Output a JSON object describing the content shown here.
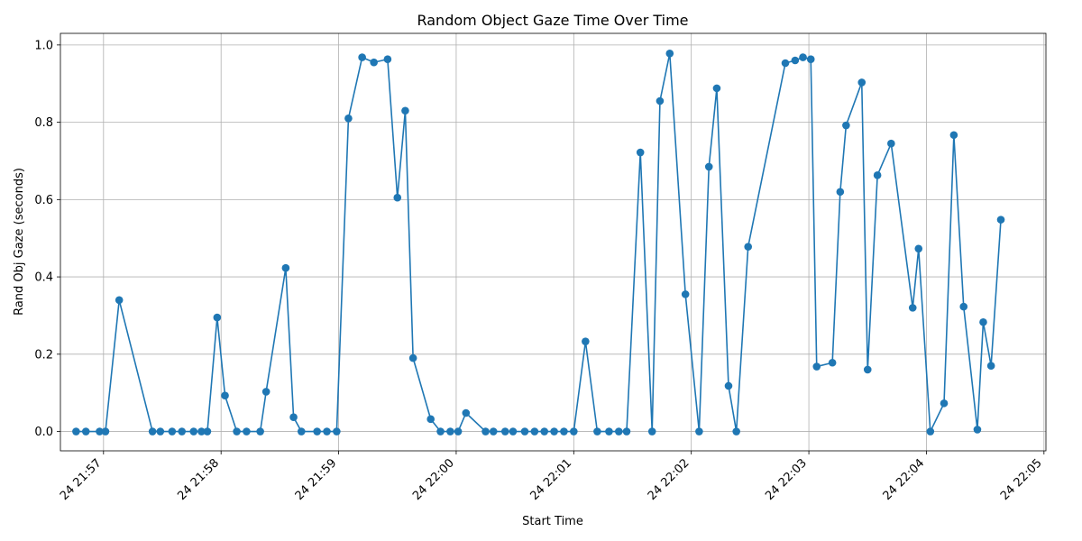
{
  "chart_data": {
    "type": "line",
    "title": "Random Object Gaze Time Over Time",
    "xlabel": "Start Time",
    "ylabel": "Rand Obj Gaze (seconds)",
    "grid": true,
    "color": "#1f77b4",
    "marker": "circle",
    "xlim": [
      "21:56:38",
      "22:05:01"
    ],
    "ylim": [
      -0.05,
      1.03
    ],
    "x_ticks": [
      {
        "time": "21:57:00",
        "label": "24 21:57"
      },
      {
        "time": "21:58:00",
        "label": "24 21:58"
      },
      {
        "time": "21:59:00",
        "label": "24 21:59"
      },
      {
        "time": "22:00:00",
        "label": "24 22:00"
      },
      {
        "time": "22:01:00",
        "label": "24 22:01"
      },
      {
        "time": "22:02:00",
        "label": "24 22:02"
      },
      {
        "time": "22:03:00",
        "label": "24 22:03"
      },
      {
        "time": "22:04:00",
        "label": "24 22:04"
      },
      {
        "time": "22:05:00",
        "label": "24 22:05"
      }
    ],
    "y_ticks": [
      {
        "value": 0.0,
        "label": "0.0"
      },
      {
        "value": 0.2,
        "label": "0.2"
      },
      {
        "value": 0.4,
        "label": "0.4"
      },
      {
        "value": 0.6,
        "label": "0.6"
      },
      {
        "value": 0.8,
        "label": "0.8"
      },
      {
        "value": 1.0,
        "label": "1.0"
      }
    ],
    "series": [
      {
        "x": [
          "21:56:46",
          "21:56:51",
          "21:56:58",
          "21:57:01",
          "21:57:08",
          "21:57:25",
          "21:57:29",
          "21:57:35",
          "21:57:40",
          "21:57:46",
          "21:57:50",
          "21:57:53",
          "21:57:58",
          "21:58:02",
          "21:58:08",
          "21:58:13",
          "21:58:20",
          "21:58:23",
          "21:58:33",
          "21:58:37",
          "21:58:41",
          "21:58:49",
          "21:58:54",
          "21:58:59",
          "21:59:05",
          "21:59:12",
          "21:59:18",
          "21:59:25",
          "21:59:30",
          "21:59:34",
          "21:59:38",
          "21:59:47",
          "21:59:52",
          "21:59:57",
          "22:00:01",
          "22:00:05",
          "22:00:15",
          "22:00:19",
          "22:00:25",
          "22:00:29",
          "22:00:35",
          "22:00:40",
          "22:00:45",
          "22:00:50",
          "22:00:55",
          "22:01:00",
          "22:01:06",
          "22:01:12",
          "22:01:18",
          "22:01:23",
          "22:01:27",
          "22:01:34",
          "22:01:40",
          "22:01:44",
          "22:01:49",
          "22:01:57",
          "22:02:04",
          "22:02:09",
          "22:02:13",
          "22:02:19",
          "22:02:23",
          "22:02:29",
          "22:02:48",
          "22:02:53",
          "22:02:57",
          "22:03:01",
          "22:03:04",
          "22:03:12",
          "22:03:16",
          "22:03:19",
          "22:03:27",
          "22:03:30",
          "22:03:35",
          "22:03:42",
          "22:03:53",
          "22:03:56",
          "22:04:02",
          "22:04:09",
          "22:04:14",
          "22:04:19",
          "22:04:26",
          "22:04:29",
          "22:04:33",
          "22:04:38"
        ],
        "y": [
          0.0,
          0.0,
          0.0,
          0.0,
          0.34,
          0.0,
          0.0,
          0.0,
          0.0,
          0.0,
          0.0,
          0.0,
          0.295,
          0.093,
          0.0,
          0.0,
          0.0,
          0.103,
          0.423,
          0.037,
          0.0,
          0.0,
          0.0,
          0.0,
          0.81,
          0.968,
          0.955,
          0.963,
          0.605,
          0.83,
          0.19,
          0.032,
          0.0,
          0.0,
          0.0,
          0.048,
          0.0,
          0.0,
          0.0,
          0.0,
          0.0,
          0.0,
          0.0,
          0.0,
          0.0,
          0.0,
          0.233,
          0.0,
          0.0,
          0.0,
          0.0,
          0.722,
          0.0,
          0.855,
          0.978,
          0.355,
          0.0,
          0.685,
          0.888,
          0.118,
          0.0,
          0.478,
          0.953,
          0.96,
          0.968,
          0.963,
          0.168,
          0.178,
          0.62,
          0.792,
          0.903,
          0.16,
          0.663,
          0.745,
          0.32,
          0.473,
          0.0,
          0.073,
          0.767,
          0.323,
          0.005,
          0.283,
          0.17,
          0.548
        ]
      }
    ]
  }
}
